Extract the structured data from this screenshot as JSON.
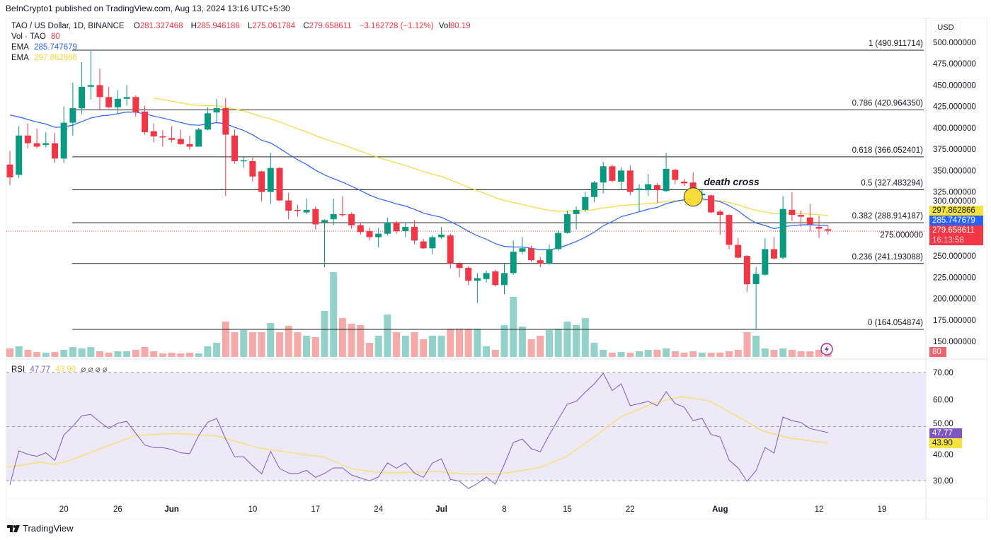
{
  "header": {
    "published": "BeInCrypto1 published on TradingView.com, Aug 13, 2024 13:16 UTC+5:30"
  },
  "legend": {
    "symbol": "TAO / US Dollar, 1D, BINANCE",
    "o_label": "O",
    "o": "281.327468",
    "h_label": "H",
    "h": "285.946186",
    "l_label": "L",
    "l": "275.061784",
    "c_label": "C",
    "c": "279.658611",
    "change": "−3.162728 (−1.12%)",
    "vol_label": "Vol",
    "vol": "80.19",
    "vol_ind_label": "Vol · TAO",
    "vol_ind_value": "80",
    "ema1_label": "EMA",
    "ema1_value": "285.747679",
    "ema2_label": "EMA",
    "ema2_value": "297.862866",
    "rsi_label": "RSI",
    "rsi_value": "47.77",
    "rsi_ma_value": "43.90",
    "rsi_extras": "⌀ ⌀ ⌀ ⌀"
  },
  "currency": "USD",
  "badges": {
    "ema2": "297.862866",
    "ema1": "285.747679",
    "close": "279.658611",
    "countdown": "16:13:58",
    "volume": "80",
    "rsi": "47.77",
    "rsi_ma": "43.90"
  },
  "annotation": {
    "text": "death cross"
  },
  "footer": {
    "brand": "TradingView"
  },
  "colors": {
    "up": "#089981",
    "down": "#f23645",
    "ema_fast": "#2962ff",
    "ema_slow": "#f5d63d",
    "rsi": "#7e57c2",
    "rsi_ma": "#f5e17a"
  },
  "chart_data": {
    "type": "candlestick",
    "title": "TAO / US Dollar, 1D, BINANCE",
    "ylim": [
      137,
      510
    ],
    "y_ticks": [
      "500.000000",
      "475.000000",
      "450.000000",
      "425.000000",
      "400.000000",
      "375.000000",
      "350.000000",
      "325.000000",
      "300.000000",
      "275.000000",
      "250.000000",
      "225.000000",
      "200.000000",
      "175.000000",
      "150.000000"
    ],
    "y_tick_values": [
      500,
      475,
      450,
      425,
      400,
      375,
      350,
      325,
      300,
      275,
      250,
      225,
      200,
      175,
      150
    ],
    "first_date": "May 14, 2024",
    "x_ticks": [
      {
        "candle": 7,
        "label": "20",
        "bold": false
      },
      {
        "candle": 13,
        "label": "26",
        "bold": false
      },
      {
        "candle": 19,
        "label": "Jun",
        "bold": true
      },
      {
        "candle": 28,
        "label": "10",
        "bold": false
      },
      {
        "candle": 35,
        "label": "17",
        "bold": false
      },
      {
        "candle": 42,
        "label": "24",
        "bold": false
      },
      {
        "candle": 49,
        "label": "Jul",
        "bold": true
      },
      {
        "candle": 56,
        "label": "8",
        "bold": false
      },
      {
        "candle": 63,
        "label": "15",
        "bold": false
      },
      {
        "candle": 70,
        "label": "22",
        "bold": false
      },
      {
        "candle": 80,
        "label": "Aug",
        "bold": true
      },
      {
        "candle": 91,
        "label": "12",
        "bold": false
      },
      {
        "candle": 98,
        "label": "19",
        "bold": false
      }
    ],
    "candles_ohlcv": [
      [
        357,
        373,
        333,
        342,
        96
      ],
      [
        345,
        402,
        341,
        391,
        120
      ],
      [
        391,
        405,
        376,
        382,
        80
      ],
      [
        382,
        399,
        376,
        378,
        56
      ],
      [
        380,
        395,
        377,
        382,
        48
      ],
      [
        382,
        394,
        359,
        364,
        56
      ],
      [
        364,
        425,
        359,
        406,
        80
      ],
      [
        406,
        453,
        391,
        423,
        112
      ],
      [
        423,
        477,
        416,
        448,
        96
      ],
      [
        448,
        491,
        433,
        450,
        112
      ],
      [
        450,
        469,
        421,
        436,
        64
      ],
      [
        436,
        448,
        423,
        424,
        48
      ],
      [
        424,
        444,
        416,
        434,
        64
      ],
      [
        434,
        450,
        426,
        436,
        64
      ],
      [
        436,
        438,
        413,
        418,
        80
      ],
      [
        419,
        426,
        392,
        395,
        112
      ],
      [
        396,
        405,
        383,
        390,
        64
      ],
      [
        390,
        397,
        378,
        389,
        40
      ],
      [
        388,
        402,
        383,
        386,
        48
      ],
      [
        387,
        398,
        380,
        381,
        40
      ],
      [
        381,
        391,
        374,
        378,
        48
      ],
      [
        378,
        400,
        378,
        398,
        40
      ],
      [
        398,
        424,
        397,
        417,
        120
      ],
      [
        418,
        434,
        405,
        423,
        160
      ],
      [
        423,
        435,
        320,
        392,
        400
      ],
      [
        391,
        398,
        358,
        361,
        280
      ],
      [
        361,
        367,
        353,
        362,
        304
      ],
      [
        361,
        365,
        337,
        343,
        280
      ],
      [
        349,
        350,
        314,
        325,
        280
      ],
      [
        325,
        371,
        311,
        353,
        384
      ],
      [
        353,
        354,
        314,
        315,
        280
      ],
      [
        315,
        324,
        293,
        303,
        352
      ],
      [
        304,
        310,
        296,
        303,
        280
      ],
      [
        301,
        317,
        299,
        304,
        240
      ],
      [
        305,
        308,
        281,
        287,
        224
      ],
      [
        289,
        293,
        237,
        292,
        520
      ],
      [
        293,
        317,
        286,
        299,
        960
      ],
      [
        299,
        320,
        296,
        298,
        440
      ],
      [
        299,
        301,
        282,
        286,
        376
      ],
      [
        286,
        289,
        275,
        278,
        360
      ],
      [
        279,
        283,
        268,
        272,
        160
      ],
      [
        272,
        283,
        260,
        276,
        240
      ],
      [
        276,
        295,
        274,
        289,
        480
      ],
      [
        289,
        291,
        276,
        279,
        280
      ],
      [
        279,
        289,
        272,
        284,
        240
      ],
      [
        284,
        292,
        264,
        268,
        280
      ],
      [
        267,
        270,
        258,
        259,
        200
      ],
      [
        259,
        274,
        252,
        272,
        240
      ],
      [
        272,
        284,
        270,
        275,
        240
      ],
      [
        274,
        276,
        235,
        241,
        320
      ],
      [
        241,
        243,
        225,
        236,
        320
      ],
      [
        236,
        238,
        216,
        221,
        320
      ],
      [
        221,
        230,
        195,
        224,
        320
      ],
      [
        223,
        233,
        219,
        230,
        120
      ],
      [
        232,
        234,
        214,
        216,
        80
      ],
      [
        216,
        241,
        205,
        230,
        360
      ],
      [
        230,
        268,
        228,
        255,
        680
      ],
      [
        255,
        272,
        252,
        259,
        344
      ],
      [
        259,
        262,
        243,
        245,
        200
      ],
      [
        245,
        249,
        237,
        241,
        240
      ],
      [
        241,
        263,
        240,
        258,
        304
      ],
      [
        258,
        280,
        256,
        277,
        320
      ],
      [
        277,
        303,
        276,
        299,
        400
      ],
      [
        299,
        308,
        281,
        304,
        360
      ],
      [
        304,
        325,
        302,
        319,
        440
      ],
      [
        319,
        338,
        313,
        336,
        160
      ],
      [
        336,
        360,
        323,
        355,
        80
      ],
      [
        355,
        357,
        336,
        338,
        48
      ],
      [
        337,
        354,
        327,
        350,
        56
      ],
      [
        350,
        356,
        321,
        325,
        48
      ],
      [
        327,
        334,
        302,
        329,
        64
      ],
      [
        327,
        346,
        320,
        334,
        80
      ],
      [
        333,
        335,
        312,
        327,
        80
      ],
      [
        326,
        371,
        325,
        352,
        96
      ],
      [
        351,
        352,
        334,
        339,
        64
      ],
      [
        337,
        340,
        332,
        335,
        48
      ],
      [
        336,
        348,
        318,
        319,
        64
      ],
      [
        321,
        329,
        319,
        323,
        48
      ],
      [
        321,
        322,
        300,
        301,
        48
      ],
      [
        302,
        304,
        275,
        298,
        48
      ],
      [
        298,
        299,
        258,
        263,
        64
      ],
      [
        263,
        271,
        247,
        248,
        80
      ],
      [
        250,
        251,
        208,
        217,
        280
      ],
      [
        217,
        237,
        163,
        229,
        240
      ],
      [
        228,
        271,
        227,
        258,
        96
      ],
      [
        258,
        272,
        246,
        247,
        80
      ],
      [
        248,
        320,
        246,
        305,
        96
      ],
      [
        304,
        325,
        291,
        298,
        80
      ],
      [
        298,
        303,
        284,
        296,
        64
      ],
      [
        295,
        311,
        279,
        287,
        64
      ],
      [
        284,
        297,
        271,
        282,
        80
      ],
      [
        281.327468,
        285.946186,
        275.061784,
        279.658611,
        80
      ]
    ],
    "ema_fast": {
      "period": 20,
      "seed_candle": 1,
      "seed": 415
    },
    "ema_slow": {
      "period": 50,
      "seed_candle": 17,
      "seed": 435
    },
    "fib_levels": [
      {
        "ratio": "1",
        "price": 490.911714,
        "label": "1 (490.911714)"
      },
      {
        "ratio": "0.786",
        "price": 420.96435,
        "label": "0.786 (420.964350)"
      },
      {
        "ratio": "0.618",
        "price": 366.052401,
        "label": "0.618 (366.052401)"
      },
      {
        "ratio": "0.5",
        "price": 327.483294,
        "label": "0.5 (327.483294)"
      },
      {
        "ratio": "0.382",
        "price": 288.914187,
        "label": "0.382 (288.914187)"
      },
      {
        "ratio": "0.236",
        "price": 241.193088,
        "label": "0.236 (241.193088)"
      },
      {
        "ratio": "0",
        "price": 164.054874,
        "label": "0 (164.054874)"
      }
    ],
    "death_cross": {
      "candle": 77,
      "price": 319
    },
    "rsi": {
      "ylim": [
        25,
        72
      ],
      "levels": [
        70,
        50,
        30
      ],
      "y_ticks": [
        "70.00",
        "60.00",
        "50.00",
        "40.00",
        "30.00"
      ],
      "y_tick_values": [
        70,
        60,
        50,
        40,
        30
      ],
      "values": [
        28.5,
        41,
        39.7,
        39,
        40.3,
        37.5,
        46.9,
        50.1,
        54,
        54.5,
        51.7,
        49.3,
        51.2,
        51.9,
        47.5,
        43.2,
        42.2,
        42.2,
        41.5,
        40.3,
        40,
        46.7,
        51.6,
        53,
        45.4,
        38.8,
        38.8,
        35.5,
        32.5,
        40.8,
        34.5,
        32.8,
        32.6,
        33.8,
        31.2,
        32.7,
        34.7,
        34.7,
        32.1,
        31,
        29.9,
        31.4,
        36.6,
        34.6,
        36.6,
        32.8,
        31.2,
        36.5,
        38.1,
        30.5,
        29.8,
        27.1,
        28.9,
        31.3,
        28.7,
        36,
        44.1,
        45.4,
        41.8,
        40.7,
        47,
        52.7,
        58.3,
        59.3,
        62.7,
        65.8,
        69.7,
        63.3,
        65.8,
        57.7,
        58.5,
        59.3,
        57.7,
        62.9,
        58.5,
        57.2,
        52.2,
        53,
        47,
        46.2,
        37.6,
        34.7,
        29.7,
        33.7,
        42.3,
        40.2,
        53.5,
        52.2,
        51.5,
        49.3,
        48.5,
        47.77
      ],
      "ma_points": [
        [
          0.7,
          35
        ],
        [
          4.4,
          36.8
        ],
        [
          6,
          36
        ],
        [
          7.5,
          37.3
        ],
        [
          12,
          43
        ],
        [
          15,
          46.7
        ],
        [
          19.5,
          47.5
        ],
        [
          24,
          46.5
        ],
        [
          28.8,
          42
        ],
        [
          33,
          40
        ],
        [
          36,
          38.7
        ],
        [
          39,
          34.4
        ],
        [
          42.1,
          33
        ],
        [
          45.1,
          33
        ],
        [
          48.6,
          33.4
        ],
        [
          51.6,
          32.4
        ],
        [
          55.3,
          32.4
        ],
        [
          59.8,
          34.7
        ],
        [
          62.8,
          38.7
        ],
        [
          65.8,
          45.7
        ],
        [
          68.9,
          53.5
        ],
        [
          72.7,
          58.8
        ],
        [
          75.8,
          61.1
        ],
        [
          78.8,
          59.5
        ],
        [
          81.8,
          54
        ],
        [
          84.8,
          48.3
        ],
        [
          87.8,
          45.7
        ],
        [
          92,
          43.9
        ]
      ]
    }
  }
}
